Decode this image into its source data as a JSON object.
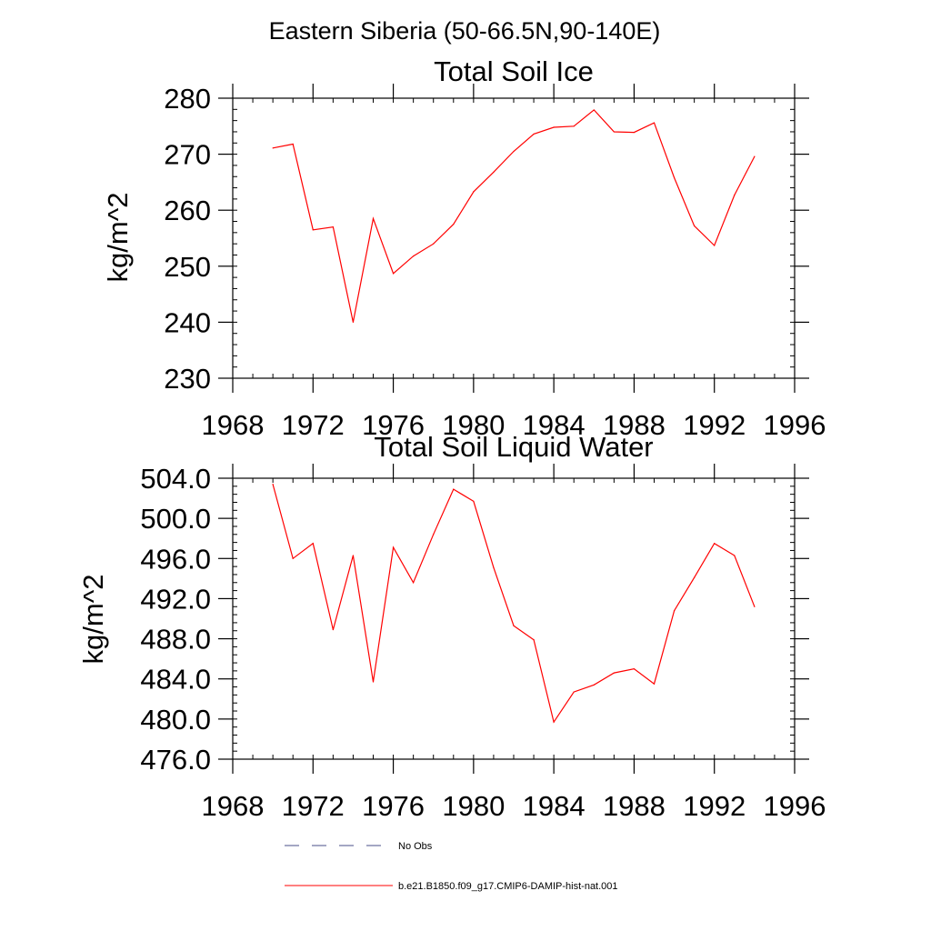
{
  "figure": {
    "title": "Eastern Siberia (50-66.5N,90-140E)"
  },
  "legend": {
    "placement": "bottom",
    "entries": [
      {
        "label": "No Obs",
        "color": "#4a4f8a",
        "dash": "dashed"
      },
      {
        "label": "b.e21.B1850.f09_g17.CMIP6-DAMIP-hist-nat.001",
        "color": "#ff0000",
        "dash": "solid"
      }
    ]
  },
  "chart_data": [
    {
      "type": "line",
      "title": "Total Soil Ice",
      "xlabel": "",
      "ylabel": "kg/m^2",
      "xlim": [
        1968,
        1996
      ],
      "ylim": [
        230,
        280
      ],
      "xticks": [
        "1968",
        "1972",
        "1976",
        "1980",
        "1984",
        "1988",
        "1992",
        "1996"
      ],
      "yticks": [
        "230",
        "240",
        "250",
        "260",
        "270",
        "280"
      ],
      "grid": false,
      "series": [
        {
          "name": "b.e21.B1850.f09_g17.CMIP6-DAMIP-hist-nat.001",
          "color": "#ff0000",
          "x": [
            1970,
            1971,
            1972,
            1973,
            1974,
            1975,
            1976,
            1977,
            1978,
            1979,
            1980,
            1981,
            1982,
            1983,
            1984,
            1985,
            1986,
            1987,
            1988,
            1989,
            1990,
            1991,
            1992,
            1993,
            1994
          ],
          "values": [
            271.1,
            271.8,
            256.5,
            257.0,
            240.0,
            258.5,
            248.7,
            251.8,
            254.0,
            257.5,
            263.3,
            266.8,
            270.5,
            273.6,
            274.8,
            275.0,
            277.9,
            274.0,
            273.9,
            275.6,
            265.8,
            257.2,
            253.7,
            262.7,
            269.6
          ]
        }
      ]
    },
    {
      "type": "line",
      "title": "Total Soil Liquid Water",
      "xlabel": "",
      "ylabel": "kg/m^2",
      "xlim": [
        1968,
        1996
      ],
      "ylim": [
        476,
        504
      ],
      "xticks": [
        "1968",
        "1972",
        "1976",
        "1980",
        "1984",
        "1988",
        "1992",
        "1996"
      ],
      "yticks": [
        "476.0",
        "480.0",
        "484.0",
        "488.0",
        "492.0",
        "496.0",
        "500.0",
        "504.0"
      ],
      "grid": false,
      "series": [
        {
          "name": "b.e21.B1850.f09_g17.CMIP6-DAMIP-hist-nat.001",
          "color": "#ff0000",
          "x": [
            1970,
            1971,
            1972,
            1973,
            1974,
            1975,
            1976,
            1977,
            1978,
            1979,
            1980,
            1981,
            1982,
            1983,
            1984,
            1985,
            1986,
            1987,
            1988,
            1989,
            1990,
            1991,
            1992,
            1993,
            1994
          ],
          "values": [
            503.4,
            496.0,
            497.5,
            488.9,
            496.3,
            483.7,
            497.1,
            493.6,
            498.4,
            502.9,
            501.7,
            495.1,
            489.3,
            487.9,
            479.7,
            482.7,
            483.4,
            484.6,
            485.0,
            483.5,
            490.8,
            494.1,
            497.5,
            496.3,
            491.2
          ]
        }
      ]
    }
  ]
}
